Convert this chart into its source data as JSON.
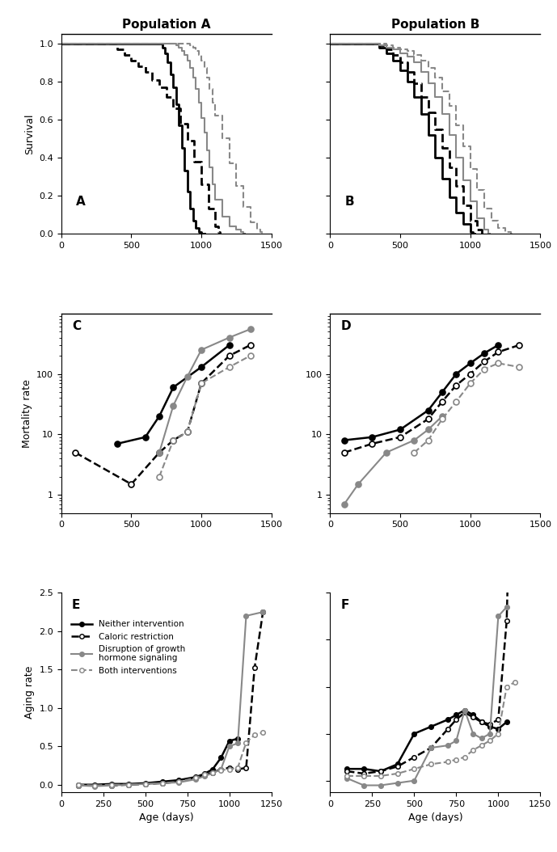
{
  "title_left": "Population A",
  "title_right": "Population B",
  "survival_A": {
    "neither": {
      "x": [
        0,
        700,
        720,
        740,
        760,
        780,
        800,
        820,
        840,
        860,
        880,
        900,
        920,
        940,
        960,
        980,
        1000,
        1010,
        1020
      ],
      "y": [
        1.0,
        1.0,
        0.98,
        0.95,
        0.9,
        0.84,
        0.77,
        0.68,
        0.57,
        0.45,
        0.33,
        0.22,
        0.13,
        0.07,
        0.03,
        0.01,
        0.0,
        0.0,
        0.0
      ]
    },
    "caloric": {
      "x": [
        0,
        350,
        400,
        450,
        500,
        550,
        600,
        650,
        700,
        750,
        800,
        850,
        900,
        950,
        1000,
        1050,
        1100,
        1120,
        1130
      ],
      "y": [
        1.0,
        1.0,
        0.97,
        0.94,
        0.91,
        0.88,
        0.85,
        0.81,
        0.77,
        0.72,
        0.66,
        0.58,
        0.49,
        0.38,
        0.26,
        0.13,
        0.04,
        0.01,
        0.0
      ]
    },
    "ghs": {
      "x": [
        0,
        800,
        820,
        840,
        860,
        880,
        900,
        920,
        940,
        960,
        980,
        1000,
        1020,
        1040,
        1060,
        1080,
        1100,
        1150,
        1200,
        1250,
        1280,
        1300,
        1310
      ],
      "y": [
        1.0,
        1.0,
        0.99,
        0.98,
        0.96,
        0.94,
        0.91,
        0.87,
        0.82,
        0.76,
        0.69,
        0.61,
        0.53,
        0.44,
        0.35,
        0.26,
        0.18,
        0.09,
        0.04,
        0.02,
        0.01,
        0.0,
        0.0
      ]
    },
    "both": {
      "x": [
        0,
        900,
        920,
        940,
        960,
        980,
        1000,
        1020,
        1040,
        1060,
        1080,
        1100,
        1150,
        1200,
        1250,
        1300,
        1350,
        1400,
        1420,
        1430
      ],
      "y": [
        1.0,
        1.0,
        0.99,
        0.98,
        0.96,
        0.94,
        0.91,
        0.87,
        0.82,
        0.76,
        0.69,
        0.62,
        0.5,
        0.37,
        0.25,
        0.14,
        0.06,
        0.02,
        0.01,
        0.0
      ]
    }
  },
  "survival_B": {
    "neither": {
      "x": [
        0,
        300,
        350,
        400,
        450,
        500,
        550,
        600,
        650,
        700,
        750,
        800,
        850,
        900,
        950,
        1000,
        1020,
        1030
      ],
      "y": [
        1.0,
        1.0,
        0.98,
        0.95,
        0.91,
        0.86,
        0.8,
        0.72,
        0.63,
        0.52,
        0.4,
        0.29,
        0.19,
        0.11,
        0.05,
        0.01,
        0.0,
        0.0
      ]
    },
    "caloric": {
      "x": [
        0,
        300,
        350,
        400,
        450,
        500,
        550,
        600,
        650,
        700,
        750,
        800,
        850,
        900,
        950,
        1000,
        1050,
        1080,
        1090
      ],
      "y": [
        1.0,
        1.0,
        0.99,
        0.97,
        0.94,
        0.9,
        0.85,
        0.79,
        0.72,
        0.64,
        0.55,
        0.45,
        0.35,
        0.25,
        0.15,
        0.07,
        0.02,
        0.0,
        0.0
      ]
    },
    "ghs": {
      "x": [
        0,
        300,
        350,
        400,
        450,
        500,
        550,
        600,
        650,
        700,
        750,
        800,
        850,
        900,
        950,
        1000,
        1050,
        1100,
        1130,
        1140
      ],
      "y": [
        1.0,
        1.0,
        0.99,
        0.98,
        0.97,
        0.95,
        0.93,
        0.9,
        0.85,
        0.79,
        0.72,
        0.63,
        0.52,
        0.4,
        0.28,
        0.17,
        0.08,
        0.02,
        0.0,
        0.0
      ]
    },
    "both": {
      "x": [
        0,
        300,
        350,
        400,
        450,
        500,
        550,
        600,
        650,
        700,
        750,
        800,
        850,
        900,
        950,
        1000,
        1050,
        1100,
        1150,
        1200,
        1250,
        1290,
        1300
      ],
      "y": [
        1.0,
        1.0,
        1.0,
        0.99,
        0.98,
        0.97,
        0.96,
        0.94,
        0.91,
        0.87,
        0.82,
        0.75,
        0.67,
        0.57,
        0.46,
        0.34,
        0.23,
        0.13,
        0.07,
        0.03,
        0.01,
        0.0,
        0.0
      ]
    }
  },
  "mortality_C": {
    "neither": {
      "x": [
        400,
        600,
        700,
        800,
        1000,
        1200
      ],
      "y": [
        7.0,
        9.0,
        20.0,
        60.0,
        130.0,
        300.0
      ]
    },
    "caloric": {
      "x": [
        100,
        500,
        700,
        800,
        900,
        1000,
        1200,
        1350
      ],
      "y": [
        5.0,
        1.5,
        5.0,
        8.0,
        11.0,
        70.0,
        200.0,
        300.0
      ]
    },
    "ghs": {
      "x": [
        700,
        800,
        900,
        1000,
        1200,
        1350
      ],
      "y": [
        5.0,
        30.0,
        90.0,
        250.0,
        400.0,
        550.0
      ]
    },
    "both": {
      "x": [
        700,
        800,
        900,
        1000,
        1200,
        1350
      ],
      "y": [
        2.0,
        8.0,
        11.0,
        70.0,
        130.0,
        200.0
      ]
    }
  },
  "mortality_D": {
    "neither": {
      "x": [
        100,
        300,
        500,
        700,
        800,
        900,
        1000,
        1100,
        1200
      ],
      "y": [
        8.0,
        9.0,
        12.0,
        25.0,
        50.0,
        100.0,
        150.0,
        220.0,
        300.0
      ]
    },
    "caloric": {
      "x": [
        100,
        300,
        500,
        700,
        800,
        900,
        1000,
        1100,
        1200,
        1350
      ],
      "y": [
        5.0,
        7.0,
        9.0,
        18.0,
        35.0,
        65.0,
        100.0,
        160.0,
        230.0,
        300.0
      ]
    },
    "ghs": {
      "x": [
        100,
        200,
        400,
        600,
        700,
        800
      ],
      "y": [
        0.7,
        1.5,
        5.0,
        8.0,
        12.0,
        20.0
      ]
    },
    "both": {
      "x": [
        600,
        700,
        800,
        900,
        1000,
        1100,
        1200,
        1350
      ],
      "y": [
        5.0,
        8.0,
        18.0,
        35.0,
        70.0,
        120.0,
        150.0,
        130.0
      ]
    }
  },
  "aging_E": {
    "neither": {
      "x": [
        100,
        200,
        300,
        400,
        500,
        600,
        700,
        800,
        850,
        900,
        950,
        1000,
        1050
      ],
      "y": [
        0.0,
        0.0,
        0.01,
        0.01,
        0.02,
        0.04,
        0.06,
        0.1,
        0.14,
        0.2,
        0.35,
        0.57,
        0.6
      ]
    },
    "caloric": {
      "x": [
        100,
        200,
        300,
        400,
        500,
        600,
        700,
        800,
        850,
        900,
        950,
        1000,
        1050,
        1100,
        1150,
        1200
      ],
      "y": [
        -0.01,
        -0.01,
        -0.01,
        0.0,
        0.01,
        0.02,
        0.04,
        0.09,
        0.12,
        0.16,
        0.2,
        0.22,
        0.2,
        0.22,
        1.52,
        2.25
      ]
    },
    "ghs": {
      "x": [
        100,
        200,
        300,
        400,
        500,
        600,
        700,
        800,
        850,
        900,
        950,
        1000,
        1050,
        1100,
        1200
      ],
      "y": [
        -0.01,
        -0.02,
        -0.01,
        0.0,
        0.01,
        0.02,
        0.03,
        0.07,
        0.11,
        0.15,
        0.2,
        0.5,
        0.54,
        2.2,
        2.25
      ]
    },
    "both": {
      "x": [
        100,
        200,
        300,
        400,
        500,
        600,
        700,
        800,
        850,
        900,
        950,
        1000,
        1050,
        1100,
        1150,
        1200
      ],
      "y": [
        0.0,
        -0.01,
        0.0,
        0.0,
        0.01,
        0.02,
        0.04,
        0.09,
        0.13,
        0.16,
        0.19,
        0.2,
        0.22,
        0.55,
        0.65,
        0.68
      ]
    }
  },
  "aging_F": {
    "neither": {
      "x": [
        100,
        200,
        300,
        400,
        500,
        600,
        700,
        750,
        800,
        850,
        900,
        950,
        1000,
        1050
      ],
      "y": [
        0.05,
        0.05,
        0.04,
        0.07,
        0.2,
        0.23,
        0.26,
        0.28,
        0.3,
        0.28,
        0.25,
        0.23,
        0.22,
        0.25
      ]
    },
    "caloric": {
      "x": [
        100,
        200,
        300,
        400,
        500,
        600,
        700,
        750,
        800,
        850,
        900,
        950,
        1000,
        1050,
        1100
      ],
      "y": [
        0.04,
        0.03,
        0.04,
        0.06,
        0.1,
        0.14,
        0.22,
        0.26,
        0.29,
        0.27,
        0.25,
        0.24,
        0.26,
        0.68,
        2.08
      ]
    },
    "ghs": {
      "x": [
        100,
        200,
        300,
        400,
        500,
        600,
        700,
        750,
        800,
        850,
        900,
        950,
        1000,
        1050
      ],
      "y": [
        0.01,
        -0.02,
        -0.02,
        -0.01,
        0.0,
        0.14,
        0.15,
        0.17,
        0.3,
        0.2,
        0.18,
        0.2,
        0.7,
        0.74
      ]
    },
    "both": {
      "x": [
        100,
        200,
        300,
        400,
        500,
        600,
        700,
        750,
        800,
        850,
        900,
        950,
        1000,
        1050,
        1100
      ],
      "y": [
        0.02,
        0.02,
        0.02,
        0.03,
        0.05,
        0.07,
        0.08,
        0.09,
        0.1,
        0.13,
        0.15,
        0.17,
        0.2,
        0.4,
        0.42
      ]
    }
  },
  "colors": {
    "neither": "#000000",
    "caloric": "#000000",
    "ghs": "#888888",
    "both": "#888888"
  },
  "legend_labels": [
    "Neither intervention",
    "Caloric restriction",
    "Disruption of growth\nhormone signaling",
    "Both interventions"
  ]
}
